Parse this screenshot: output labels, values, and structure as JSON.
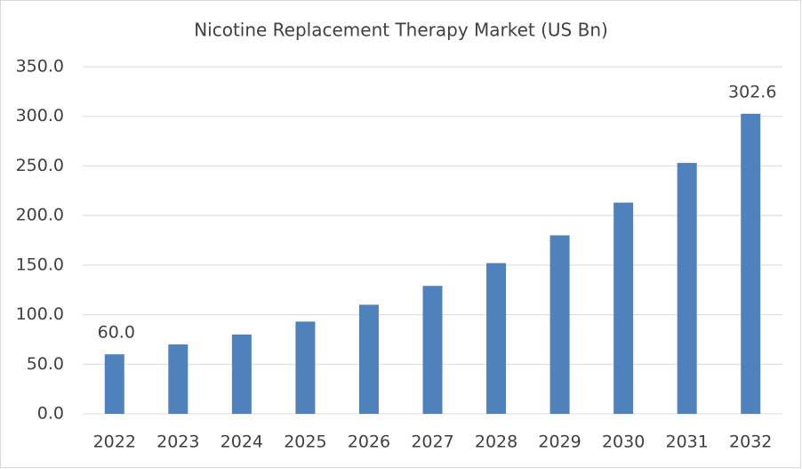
{
  "chart_data": {
    "type": "bar",
    "title": "Nicotine Replacement Therapy Market (US Bn)",
    "categories": [
      "2022",
      "2023",
      "2024",
      "2025",
      "2026",
      "2027",
      "2028",
      "2029",
      "2030",
      "2031",
      "2032"
    ],
    "values": [
      60.0,
      70,
      80,
      93,
      110,
      129,
      152,
      180,
      213,
      253,
      302.6
    ],
    "value_labels": [
      "60.0",
      null,
      null,
      null,
      null,
      null,
      null,
      null,
      null,
      null,
      "302.6"
    ],
    "color": "#4f81bd",
    "ylim": [
      0,
      350
    ],
    "yticks": [
      {
        "value": 0,
        "label": "0.0"
      },
      {
        "value": 50,
        "label": "50.0"
      },
      {
        "value": 100,
        "label": "100.0"
      },
      {
        "value": 150,
        "label": "150.0"
      },
      {
        "value": 200,
        "label": "200.0"
      },
      {
        "value": 250,
        "label": "250.0"
      },
      {
        "value": 300,
        "label": "300.0"
      },
      {
        "value": 350,
        "label": "350.0"
      }
    ],
    "grid": true
  }
}
